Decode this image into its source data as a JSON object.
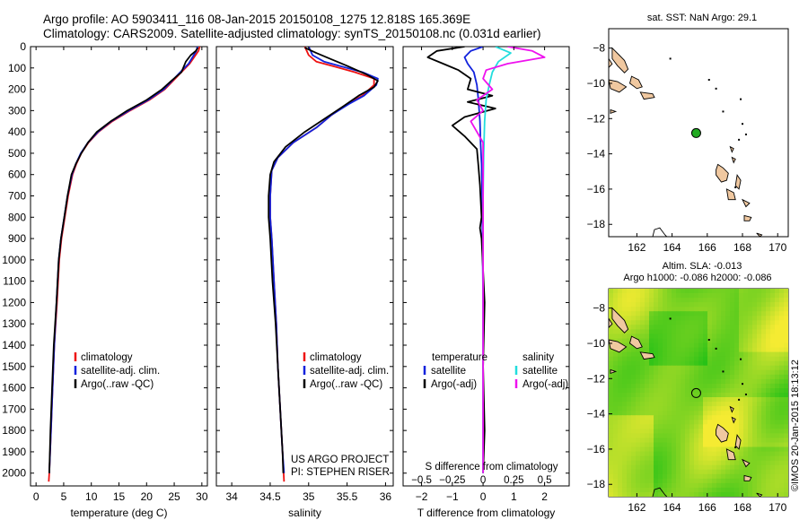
{
  "header": {
    "line1": "Argo profile: AO 5903411_116 08-Jan-2015 20150108_1275 12.818S 165.369E",
    "line2": "Climatology: CARS2009. Satellite-adjusted climatology: synTS_20150108.nc (0.031d earlier)"
  },
  "colors": {
    "climatology": "#ee1111",
    "satellite": "#1122dd",
    "argo": "#000000",
    "sal_satellite": "#22dddd",
    "sal_argo": "#ee11ee",
    "land": "#f0c8a0",
    "argo_marker": "#22aa22"
  },
  "chart_data": [
    {
      "type": "line",
      "name": "temperature-profile",
      "xlabel": "temperature (deg C)",
      "ylabel": "",
      "xlim": [
        -1,
        31
      ],
      "ylim": [
        2060,
        0
      ],
      "xticks": [
        0,
        5,
        10,
        15,
        20,
        25,
        30
      ],
      "yticks": [
        0,
        100,
        200,
        300,
        400,
        500,
        600,
        700,
        800,
        900,
        1000,
        1100,
        1200,
        1300,
        1400,
        1500,
        1600,
        1700,
        1800,
        1900,
        2000
      ],
      "legend": [
        "climatology",
        "satellite-adj. clim.",
        "Argo(..raw -QC)"
      ],
      "legend_position": "bottom-left",
      "series": [
        {
          "name": "climatology",
          "color": "#ee1111",
          "points": [
            [
              29.6,
              0
            ],
            [
              29.4,
              20
            ],
            [
              28.6,
              50
            ],
            [
              27.8,
              80
            ],
            [
              26.3,
              120
            ],
            [
              24.8,
              160
            ],
            [
              23.3,
              200
            ],
            [
              20.5,
              250
            ],
            [
              17.0,
              300
            ],
            [
              13.8,
              350
            ],
            [
              11.3,
              400
            ],
            [
              9.5,
              450
            ],
            [
              8.2,
              500
            ],
            [
              7.3,
              550
            ],
            [
              6.6,
              600
            ],
            [
              5.8,
              700
            ],
            [
              5.2,
              800
            ],
            [
              4.6,
              900
            ],
            [
              4.2,
              1000
            ],
            [
              3.8,
              1200
            ],
            [
              3.3,
              1400
            ],
            [
              3.0,
              1600
            ],
            [
              2.7,
              1800
            ],
            [
              2.4,
              2000
            ],
            [
              2.3,
              2040
            ]
          ]
        },
        {
          "name": "satellite-adj. clim.",
          "color": "#1122dd",
          "points": [
            [
              29.2,
              0
            ],
            [
              29.0,
              20
            ],
            [
              28.3,
              50
            ],
            [
              27.6,
              80
            ],
            [
              26.1,
              120
            ],
            [
              24.6,
              160
            ],
            [
              23.1,
              200
            ],
            [
              20.3,
              250
            ],
            [
              16.8,
              300
            ],
            [
              13.6,
              350
            ],
            [
              11.2,
              400
            ],
            [
              9.4,
              450
            ],
            [
              8.1,
              500
            ],
            [
              7.2,
              550
            ],
            [
              6.5,
              600
            ],
            [
              5.7,
              700
            ],
            [
              5.1,
              800
            ],
            [
              4.5,
              900
            ],
            [
              4.1,
              1000
            ],
            [
              3.7,
              1200
            ],
            [
              3.3,
              1400
            ],
            [
              3.0,
              1600
            ],
            [
              2.7,
              1800
            ],
            [
              2.4,
              2000
            ]
          ]
        },
        {
          "name": "Argo(..raw -QC)",
          "color": "#000000",
          "points": [
            [
              29.3,
              5
            ],
            [
              28.9,
              20
            ],
            [
              28.0,
              40
            ],
            [
              27.1,
              70
            ],
            [
              26.3,
              120
            ],
            [
              24.5,
              160
            ],
            [
              22.8,
              200
            ],
            [
              20.0,
              250
            ],
            [
              16.5,
              300
            ],
            [
              13.5,
              350
            ],
            [
              11.0,
              400
            ],
            [
              9.4,
              450
            ],
            [
              8.2,
              500
            ],
            [
              7.2,
              550
            ],
            [
              6.4,
              600
            ],
            [
              5.7,
              700
            ],
            [
              5.1,
              800
            ],
            [
              4.5,
              900
            ],
            [
              4.1,
              1000
            ],
            [
              3.7,
              1200
            ],
            [
              3.2,
              1400
            ],
            [
              2.9,
              1600
            ],
            [
              2.6,
              1800
            ],
            [
              2.4,
              2000
            ]
          ]
        }
      ]
    },
    {
      "type": "line",
      "name": "salinity-profile",
      "xlabel": "salinity",
      "ylabel": "",
      "xlim": [
        33.8,
        36.1
      ],
      "ylim": [
        2060,
        0
      ],
      "xticks": [
        34,
        34.5,
        35,
        35.5,
        36
      ],
      "legend": [
        "climatology",
        "satellite-adj. clim.",
        "Argo(..raw -QC)"
      ],
      "legend_position": "bottom-right",
      "annotation": {
        "line1": "US ARGO PROJECT",
        "line2": "PI: STEPHEN RISER"
      },
      "series": [
        {
          "name": "climatology",
          "color": "#ee1111",
          "points": [
            [
              34.95,
              0
            ],
            [
              35.0,
              40
            ],
            [
              35.1,
              70
            ],
            [
              35.3,
              90
            ],
            [
              35.6,
              120
            ],
            [
              35.85,
              150
            ],
            [
              35.85,
              180
            ],
            [
              35.7,
              230
            ],
            [
              35.5,
              270
            ],
            [
              35.3,
              320
            ],
            [
              35.1,
              380
            ],
            [
              34.8,
              450
            ],
            [
              34.6,
              520
            ],
            [
              34.52,
              580
            ],
            [
              34.5,
              700
            ],
            [
              34.5,
              800
            ],
            [
              34.52,
              900
            ],
            [
              34.55,
              1100
            ],
            [
              34.58,
              1300
            ],
            [
              34.6,
              1500
            ],
            [
              34.63,
              1700
            ],
            [
              34.66,
              1900
            ],
            [
              34.68,
              2040
            ]
          ]
        },
        {
          "name": "satellite-adj. clim.",
          "color": "#1122dd",
          "points": [
            [
              35.0,
              0
            ],
            [
              35.05,
              40
            ],
            [
              35.2,
              70
            ],
            [
              35.45,
              95
            ],
            [
              35.7,
              120
            ],
            [
              35.9,
              150
            ],
            [
              35.88,
              180
            ],
            [
              35.72,
              230
            ],
            [
              35.52,
              270
            ],
            [
              35.3,
              320
            ],
            [
              35.1,
              380
            ],
            [
              34.8,
              450
            ],
            [
              34.6,
              520
            ],
            [
              34.52,
              580
            ],
            [
              34.5,
              700
            ],
            [
              34.5,
              800
            ],
            [
              34.52,
              900
            ],
            [
              34.55,
              1100
            ],
            [
              34.58,
              1300
            ],
            [
              34.6,
              1500
            ],
            [
              34.63,
              1700
            ],
            [
              34.66,
              1900
            ],
            [
              34.68,
              2000
            ]
          ]
        },
        {
          "name": "Argo(..raw -QC)",
          "color": "#000000",
          "points": [
            [
              34.95,
              5
            ],
            [
              35.1,
              30
            ],
            [
              35.3,
              60
            ],
            [
              35.5,
              90
            ],
            [
              35.75,
              130
            ],
            [
              35.9,
              160
            ],
            [
              35.85,
              190
            ],
            [
              35.65,
              230
            ],
            [
              35.45,
              280
            ],
            [
              35.2,
              340
            ],
            [
              34.95,
              400
            ],
            [
              34.7,
              470
            ],
            [
              34.55,
              540
            ],
            [
              34.5,
              600
            ],
            [
              34.48,
              700
            ],
            [
              34.48,
              800
            ],
            [
              34.5,
              900
            ],
            [
              34.53,
              1100
            ],
            [
              34.57,
              1300
            ],
            [
              34.6,
              1500
            ],
            [
              34.63,
              1700
            ],
            [
              34.66,
              1900
            ],
            [
              34.67,
              2000
            ]
          ]
        }
      ]
    },
    {
      "type": "line",
      "name": "difference-profile",
      "xlabel": "T difference from climatology",
      "xlabel_top": "S difference from climatology",
      "xlim": [
        -2.6,
        2.8
      ],
      "ylim": [
        2060,
        0
      ],
      "xticks": [
        -2,
        -1,
        0,
        1,
        2
      ],
      "sticks": [
        "-0.5",
        "-0.25",
        "0",
        "0.25",
        "0.5"
      ],
      "legend_headers": [
        "temperature",
        "salinity"
      ],
      "legend": [
        "satellite",
        "Argo(-adj)",
        "satellite",
        "Argo(-adj)"
      ],
      "legend_position": "bottom",
      "series": [
        {
          "name": "satellite",
          "color": "#1122dd",
          "points": [
            [
              0.0,
              0
            ],
            [
              -0.4,
              20
            ],
            [
              -0.6,
              50
            ],
            [
              -0.5,
              80
            ],
            [
              -0.3,
              120
            ],
            [
              -0.2,
              180
            ],
            [
              -0.15,
              250
            ],
            [
              -0.1,
              350
            ],
            [
              -0.08,
              450
            ],
            [
              -0.05,
              550
            ],
            [
              -0.03,
              700
            ],
            [
              -0.02,
              900
            ],
            [
              0.0,
              1200
            ],
            [
              0.0,
              1600
            ],
            [
              0.0,
              2000
            ]
          ]
        },
        {
          "name": "Argo(-adj)",
          "color": "#000000",
          "points": [
            [
              -0.6,
              0
            ],
            [
              -1.5,
              20
            ],
            [
              -1.8,
              50
            ],
            [
              -1.3,
              80
            ],
            [
              -0.8,
              110
            ],
            [
              -0.4,
              150
            ],
            [
              -0.5,
              200
            ],
            [
              0.3,
              230
            ],
            [
              -0.5,
              260
            ],
            [
              0.4,
              290
            ],
            [
              -0.6,
              330
            ],
            [
              -1.0,
              370
            ],
            [
              -0.6,
              420
            ],
            [
              -0.2,
              480
            ],
            [
              -0.15,
              560
            ],
            [
              -0.1,
              650
            ],
            [
              -0.05,
              800
            ],
            [
              -0.1,
              850
            ],
            [
              -0.05,
              900
            ],
            [
              0.05,
              1200
            ],
            [
              0.0,
              1500
            ],
            [
              0.05,
              1800
            ],
            [
              0.0,
              2000
            ]
          ]
        },
        {
          "name": "satellite",
          "color": "#22dddd",
          "points": [
            [
              0.4,
              0
            ],
            [
              0.9,
              30
            ],
            [
              0.5,
              70
            ],
            [
              0.3,
              120
            ],
            [
              0.2,
              180
            ],
            [
              0.1,
              250
            ],
            [
              0.05,
              350
            ],
            [
              0.02,
              500
            ],
            [
              0.0,
              700
            ],
            [
              0.0,
              1000
            ],
            [
              0.0,
              1500
            ],
            [
              0.0,
              2000
            ]
          ]
        },
        {
          "name": "Argo(-adj)",
          "color": "#ee11ee",
          "points": [
            [
              0.8,
              0
            ],
            [
              1.6,
              20
            ],
            [
              2.0,
              50
            ],
            [
              0.8,
              80
            ],
            [
              0.1,
              110
            ],
            [
              0.0,
              150
            ],
            [
              0.3,
              200
            ],
            [
              -0.2,
              250
            ],
            [
              0.0,
              300
            ],
            [
              -0.4,
              350
            ],
            [
              -0.2,
              400
            ],
            [
              0.0,
              450
            ],
            [
              0.0,
              600
            ],
            [
              0.0,
              900
            ],
            [
              0.0,
              1300
            ],
            [
              0.0,
              2000
            ]
          ]
        }
      ]
    },
    {
      "type": "scatter",
      "name": "sst-map",
      "title": "sat. SST: NaN Argo: 29.1",
      "xlim": [
        160.4,
        170.6
      ],
      "ylim": [
        -18.7,
        -6.9
      ],
      "xticks": [
        162,
        164,
        166,
        168,
        170
      ],
      "yticks": [
        -8,
        -10,
        -12,
        -14,
        -16,
        -18
      ],
      "argo_position": [
        165.37,
        -12.82
      ],
      "grid": false
    },
    {
      "type": "heatmap",
      "name": "sla-map",
      "title_line1": "Altim. SLA: -0.013",
      "title_line2": "Argo h1000: -0.086 h2000: -0.086",
      "xlim": [
        160.4,
        170.6
      ],
      "ylim": [
        -18.7,
        -6.9
      ],
      "xticks": [
        162,
        164,
        166,
        168,
        170
      ],
      "yticks": [
        -8,
        -10,
        -12,
        -14,
        -16,
        -18
      ],
      "argo_position": [
        165.37,
        -12.82
      ]
    }
  ],
  "footer": {
    "copyright": "©IMOS 20-Jan-2015 18:13:12"
  }
}
